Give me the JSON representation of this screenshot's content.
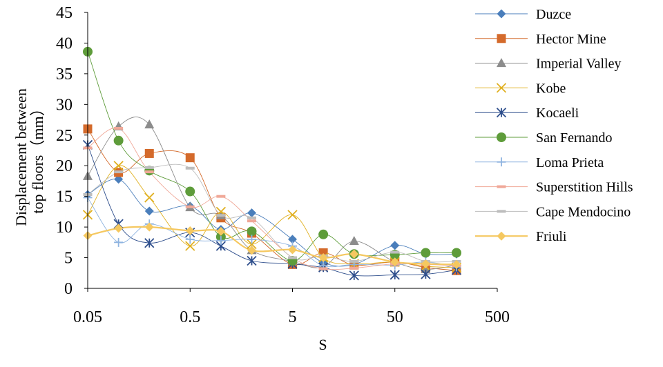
{
  "chart_data": {
    "type": "scatter",
    "xlabel": "S",
    "ylabel": [
      "Displacement between",
      "top floors（mm）"
    ],
    "x_scale": "log",
    "xlim": [
      0.05,
      500
    ],
    "ylim": [
      0,
      45
    ],
    "x_ticks": [
      0.05,
      0.5,
      5,
      50,
      500
    ],
    "x_tick_labels": [
      "0.05",
      "0.5",
      "5",
      "50",
      "500"
    ],
    "y_ticks": [
      0,
      5,
      10,
      15,
      20,
      25,
      30,
      35,
      40,
      45
    ],
    "y_tick_labels": [
      "0",
      "5",
      "10",
      "15",
      "20",
      "25",
      "30",
      "35",
      "40",
      "45"
    ],
    "grid": false,
    "legend_position": "right",
    "x": [
      0.05,
      0.1,
      0.2,
      0.5,
      1,
      2,
      5,
      10,
      20,
      50,
      100,
      200
    ],
    "series": [
      {
        "name": "Duzce",
        "marker": "diamond",
        "color": "#4a7ebb",
        "values": [
          15.3,
          17.8,
          12.6,
          13.4,
          9.6,
          12.3,
          8.0,
          4.2,
          3.9,
          7.0,
          5.6,
          5.6
        ]
      },
      {
        "name": "Hector Mine",
        "marker": "square",
        "color": "#d46a2b",
        "values": [
          26.0,
          18.9,
          22.0,
          21.3,
          11.5,
          9.0,
          3.9,
          5.8,
          3.8,
          4.3,
          3.4,
          2.9
        ]
      },
      {
        "name": "Imperial Valley",
        "marker": "triangle",
        "color": "#8c8c8c",
        "values": [
          18.3,
          26.4,
          26.7,
          13.2,
          11.9,
          6.2,
          4.4,
          3.5,
          7.7,
          4.3,
          3.1,
          3.8
        ]
      },
      {
        "name": "Kobe",
        "marker": "x",
        "color": "#e0b020",
        "values": [
          12.0,
          20.0,
          14.8,
          6.9,
          12.5,
          7.2,
          12.0,
          5.0,
          4.0,
          4.3,
          3.6,
          3.4
        ]
      },
      {
        "name": "Kocaeli",
        "marker": "asterisk",
        "color": "#2e4e8c",
        "values": [
          23.4,
          10.5,
          7.4,
          9.1,
          6.9,
          4.5,
          4.0,
          3.4,
          2.1,
          2.2,
          2.3,
          3.0
        ]
      },
      {
        "name": "San Fernando",
        "marker": "circle",
        "color": "#5e9c3a",
        "values": [
          38.6,
          24.1,
          19.2,
          15.8,
          8.4,
          9.3,
          4.5,
          8.8,
          5.6,
          5.5,
          5.8,
          5.8
        ]
      },
      {
        "name": "Loma Prieta",
        "marker": "plus",
        "color": "#8fb4e0",
        "values": [
          14.8,
          7.5,
          10.5,
          8.0,
          7.8,
          8.0,
          6.9,
          3.7,
          3.9,
          3.8,
          4.3,
          3.5
        ]
      },
      {
        "name": "Superstition Hills",
        "marker": "dash",
        "color": "#f0a898",
        "values": [
          22.9,
          26.1,
          19.0,
          13.3,
          15.0,
          11.0,
          5.0,
          3.2,
          3.3,
          4.0,
          3.9,
          3.7
        ]
      },
      {
        "name": "Cape Mendocino",
        "marker": "dash",
        "color": "#bdbdbd",
        "values": [
          15.3,
          19.0,
          19.7,
          19.6,
          11.9,
          11.5,
          5.0,
          5.3,
          4.4,
          5.9,
          4.4,
          4.4
        ]
      },
      {
        "name": "Friuli",
        "marker": "diamond",
        "color": "#f5c860",
        "values": [
          8.6,
          9.8,
          10.0,
          9.4,
          9.3,
          6.2,
          6.3,
          5.0,
          5.6,
          4.3,
          4.0,
          3.9
        ]
      }
    ]
  }
}
